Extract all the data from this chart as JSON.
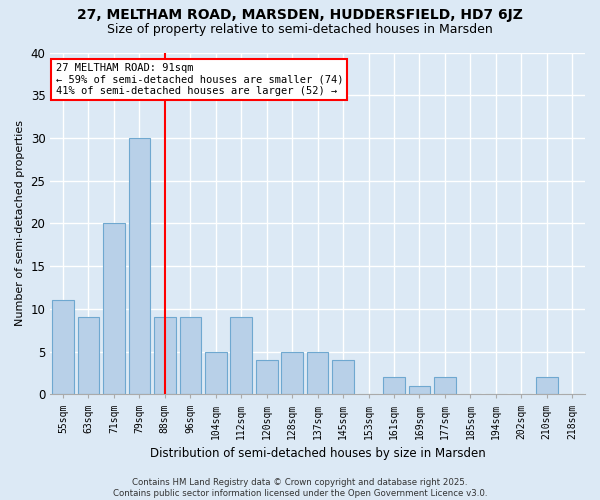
{
  "title1": "27, MELTHAM ROAD, MARSDEN, HUDDERSFIELD, HD7 6JZ",
  "title2": "Size of property relative to semi-detached houses in Marsden",
  "xlabel": "Distribution of semi-detached houses by size in Marsden",
  "ylabel": "Number of semi-detached properties",
  "categories": [
    "55sqm",
    "63sqm",
    "71sqm",
    "79sqm",
    "88sqm",
    "96sqm",
    "104sqm",
    "112sqm",
    "120sqm",
    "128sqm",
    "137sqm",
    "145sqm",
    "153sqm",
    "161sqm",
    "169sqm",
    "177sqm",
    "185sqm",
    "194sqm",
    "202sqm",
    "210sqm",
    "218sqm"
  ],
  "values": [
    11,
    9,
    20,
    30,
    9,
    9,
    5,
    9,
    4,
    5,
    5,
    4,
    0,
    2,
    1,
    2,
    0,
    0,
    0,
    2,
    0
  ],
  "bar_color": "#b8d0e8",
  "bar_edge_color": "#6fa8d0",
  "vline_index": 4,
  "annotation_text_line1": "27 MELTHAM ROAD: 91sqm",
  "annotation_text_line2": "← 59% of semi-detached houses are smaller (74)",
  "annotation_text_line3": "41% of semi-detached houses are larger (52) →",
  "annotation_box_color": "white",
  "annotation_box_edge_color": "red",
  "vline_color": "red",
  "ylim": [
    0,
    40
  ],
  "yticks": [
    0,
    5,
    10,
    15,
    20,
    25,
    30,
    35,
    40
  ],
  "footer": "Contains HM Land Registry data © Crown copyright and database right 2025.\nContains public sector information licensed under the Open Government Licence v3.0.",
  "background_color": "#dce9f5",
  "plot_bg_color": "#dce9f5",
  "grid_color": "#ffffff",
  "title1_fontsize": 10,
  "title2_fontsize": 9
}
